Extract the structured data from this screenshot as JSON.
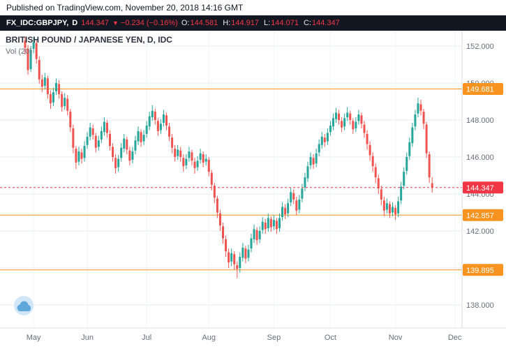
{
  "published_bar": {
    "text": "Published on TradingView.com, November 20, 2018 14:16 GMT"
  },
  "symbol_bar": {
    "symbol": "FX_IDC:GBPJPY,",
    "interval": "D",
    "last": "144.347",
    "direction": "▼",
    "change": "−0.234 (−0.16%)",
    "ohlc": [
      {
        "label": "O:",
        "value": "144.581"
      },
      {
        "label": "H:",
        "value": "144.917"
      },
      {
        "label": "L:",
        "value": "144.071"
      },
      {
        "label": "C:",
        "value": "144.347"
      }
    ]
  },
  "watermark": {
    "title": "BRITISH POUND / JAPANESE YEN, D, IDC",
    "indicator": "Vol (20)"
  },
  "colors": {
    "up": "#26a69a",
    "down": "#ef5350",
    "orange": "#f7931e",
    "red": "#f23645",
    "grid": "#e9ebf0",
    "vgrid": "#f3f4f7",
    "axis_text": "#6a6d78",
    "separator": "#dcdee3",
    "watermark_title": "#2f3241",
    "logo_bg": "#cfe6f8",
    "logo_cloud": "#5fa8dc"
  },
  "chart_data": {
    "type": "candlestick",
    "symbol": "GBPJPY",
    "interval": "D",
    "title": "BRITISH POUND / JAPANESE YEN, D, IDC",
    "ylim": [
      136.8,
      152.8
    ],
    "grid": true,
    "y_axis": {
      "ticks": [
        {
          "price": 152,
          "label": "152.000"
        },
        {
          "price": 150,
          "label": "150.000"
        },
        {
          "price": 148,
          "label": "148.000"
        },
        {
          "price": 146,
          "label": "146.000"
        },
        {
          "price": 144,
          "label": "144.000"
        },
        {
          "price": 142,
          "label": "142.000"
        },
        {
          "price": 140,
          "label": ""
        },
        {
          "price": 138,
          "label": "138.000"
        }
      ]
    },
    "levels": [
      {
        "price": 149.681,
        "label": "149.681"
      },
      {
        "price": 142.857,
        "label": "142.857"
      },
      {
        "price": 139.895,
        "label": "139.895"
      }
    ],
    "last_price": {
      "price": 144.347,
      "label": "144.347"
    },
    "months": [
      {
        "label": "May",
        "index": 3
      },
      {
        "label": "Jun",
        "index": 22
      },
      {
        "label": "Jul",
        "index": 43
      },
      {
        "label": "Aug",
        "index": 65
      },
      {
        "label": "Sep",
        "index": 88
      },
      {
        "label": "Oct",
        "index": 108
      },
      {
        "label": "Nov",
        "index": 131
      },
      {
        "label": "Dec",
        "index": 152
      }
    ],
    "candles": [
      [
        152.3,
        152.5,
        151.55,
        151.9
      ],
      [
        151.85,
        152.05,
        150.45,
        150.7
      ],
      [
        150.75,
        152.0,
        150.6,
        151.8
      ],
      [
        151.85,
        152.5,
        151.6,
        152.2
      ],
      [
        152.15,
        152.3,
        151.05,
        151.3
      ],
      [
        151.25,
        151.45,
        149.95,
        150.2
      ],
      [
        150.2,
        150.45,
        149.5,
        149.8
      ],
      [
        149.85,
        150.55,
        149.65,
        150.3
      ],
      [
        150.25,
        150.4,
        149.15,
        149.4
      ],
      [
        149.4,
        149.6,
        148.6,
        148.9
      ],
      [
        148.95,
        149.75,
        148.75,
        149.5
      ],
      [
        149.55,
        150.25,
        149.35,
        150.0
      ],
      [
        149.95,
        150.15,
        149.15,
        149.4
      ],
      [
        149.4,
        149.55,
        148.45,
        148.7
      ],
      [
        148.75,
        149.45,
        148.55,
        149.2
      ],
      [
        149.15,
        149.35,
        148.25,
        148.5
      ],
      [
        148.45,
        148.6,
        147.35,
        147.6
      ],
      [
        147.55,
        147.75,
        146.2,
        146.5
      ],
      [
        146.45,
        146.6,
        145.35,
        145.7
      ],
      [
        145.75,
        146.55,
        145.55,
        146.3
      ],
      [
        146.25,
        146.45,
        145.65,
        145.9
      ],
      [
        145.95,
        146.85,
        145.75,
        146.6
      ],
      [
        146.65,
        147.35,
        146.45,
        147.1
      ],
      [
        147.1,
        147.85,
        146.9,
        147.6
      ],
      [
        147.55,
        147.75,
        146.95,
        147.2
      ],
      [
        147.15,
        147.3,
        146.25,
        146.5
      ],
      [
        146.55,
        147.15,
        146.35,
        146.9
      ],
      [
        146.95,
        147.65,
        146.75,
        147.4
      ],
      [
        147.35,
        148.15,
        147.15,
        147.9
      ],
      [
        147.85,
        148.0,
        147.05,
        147.3
      ],
      [
        147.25,
        147.45,
        146.35,
        146.6
      ],
      [
        146.55,
        146.75,
        145.75,
        146.0
      ],
      [
        145.95,
        146.15,
        145.1,
        145.4
      ],
      [
        145.45,
        146.1,
        145.2,
        145.9
      ],
      [
        145.95,
        146.75,
        145.75,
        146.5
      ],
      [
        146.45,
        147.25,
        146.25,
        147.0
      ],
      [
        146.95,
        147.1,
        146.15,
        146.4
      ],
      [
        146.35,
        146.55,
        145.55,
        145.8
      ],
      [
        145.85,
        146.55,
        145.65,
        146.3
      ],
      [
        146.35,
        147.15,
        146.15,
        146.9
      ],
      [
        146.85,
        147.65,
        146.65,
        147.4
      ],
      [
        147.35,
        147.5,
        146.55,
        146.8
      ],
      [
        146.85,
        147.45,
        146.65,
        147.2
      ],
      [
        147.25,
        147.95,
        147.05,
        147.7
      ],
      [
        147.65,
        148.45,
        147.45,
        148.2
      ],
      [
        148.15,
        148.8,
        147.95,
        148.5
      ],
      [
        148.45,
        148.6,
        147.75,
        148.0
      ],
      [
        147.95,
        148.1,
        147.15,
        147.4
      ],
      [
        147.45,
        148.05,
        147.25,
        147.8
      ],
      [
        147.85,
        148.55,
        147.65,
        148.3
      ],
      [
        148.25,
        148.4,
        147.45,
        147.7
      ],
      [
        147.65,
        147.85,
        146.85,
        147.1
      ],
      [
        147.05,
        147.25,
        146.2,
        146.5
      ],
      [
        146.45,
        146.65,
        145.75,
        146.0
      ],
      [
        146.05,
        146.65,
        145.85,
        146.4
      ],
      [
        146.35,
        146.55,
        145.75,
        146.0
      ],
      [
        145.95,
        146.15,
        145.2,
        145.5
      ],
      [
        145.55,
        146.15,
        145.35,
        145.9
      ],
      [
        145.95,
        146.55,
        145.75,
        146.3
      ],
      [
        146.25,
        146.4,
        145.55,
        145.8
      ],
      [
        145.75,
        145.95,
        145.1,
        145.4
      ],
      [
        145.45,
        146.05,
        145.25,
        145.8
      ],
      [
        145.85,
        146.45,
        145.65,
        146.2
      ],
      [
        146.15,
        146.3,
        145.45,
        145.7
      ],
      [
        145.75,
        146.15,
        145.55,
        145.9
      ],
      [
        145.85,
        146.0,
        144.95,
        145.2
      ],
      [
        145.15,
        145.3,
        144.2,
        144.5
      ],
      [
        144.45,
        144.6,
        143.5,
        143.8
      ],
      [
        143.75,
        143.9,
        142.7,
        143.0
      ],
      [
        142.95,
        143.15,
        142.0,
        142.3
      ],
      [
        142.25,
        142.45,
        141.3,
        141.6
      ],
      [
        141.55,
        141.75,
        140.6,
        140.9
      ],
      [
        140.85,
        141.05,
        140.0,
        140.3
      ],
      [
        140.35,
        141.05,
        140.1,
        140.8
      ],
      [
        140.75,
        140.9,
        139.9,
        140.2
      ],
      [
        140.15,
        140.35,
        139.45,
        139.95
      ],
      [
        140.0,
        140.85,
        139.75,
        140.6
      ],
      [
        140.55,
        141.35,
        140.35,
        141.1
      ],
      [
        141.05,
        141.2,
        140.25,
        140.5
      ],
      [
        140.55,
        141.25,
        140.35,
        141.0
      ],
      [
        141.05,
        141.85,
        140.85,
        141.6
      ],
      [
        141.55,
        142.35,
        141.35,
        142.1
      ],
      [
        142.05,
        142.2,
        141.25,
        141.5
      ],
      [
        141.55,
        142.25,
        141.35,
        142.0
      ],
      [
        142.05,
        142.75,
        141.85,
        142.5
      ],
      [
        142.45,
        142.65,
        141.85,
        142.1
      ],
      [
        142.15,
        142.95,
        141.95,
        142.7
      ],
      [
        142.65,
        142.8,
        141.95,
        142.2
      ],
      [
        142.25,
        142.85,
        142.05,
        142.6
      ],
      [
        142.55,
        142.7,
        141.85,
        142.1
      ],
      [
        142.15,
        142.95,
        141.95,
        142.7
      ],
      [
        142.75,
        143.55,
        142.55,
        143.3
      ],
      [
        143.25,
        143.45,
        142.65,
        142.9
      ],
      [
        142.95,
        143.75,
        142.75,
        143.5
      ],
      [
        143.55,
        144.35,
        143.35,
        144.1
      ],
      [
        144.05,
        144.25,
        143.45,
        143.7
      ],
      [
        143.65,
        143.85,
        142.85,
        143.1
      ],
      [
        143.15,
        143.95,
        142.95,
        143.7
      ],
      [
        143.75,
        144.55,
        143.55,
        144.3
      ],
      [
        144.35,
        145.15,
        144.15,
        144.9
      ],
      [
        144.85,
        145.75,
        144.65,
        145.5
      ],
      [
        145.55,
        146.25,
        145.35,
        146.0
      ],
      [
        145.95,
        146.15,
        145.35,
        145.6
      ],
      [
        145.65,
        146.45,
        145.45,
        146.2
      ],
      [
        146.25,
        146.95,
        146.05,
        146.7
      ],
      [
        146.65,
        147.35,
        146.45,
        147.1
      ],
      [
        147.05,
        147.25,
        146.55,
        146.8
      ],
      [
        146.85,
        147.55,
        146.65,
        147.3
      ],
      [
        147.35,
        147.95,
        147.15,
        147.7
      ],
      [
        147.65,
        148.35,
        147.45,
        148.1
      ],
      [
        148.05,
        148.65,
        147.85,
        148.4
      ],
      [
        148.35,
        148.55,
        147.75,
        148.0
      ],
      [
        147.95,
        148.15,
        147.35,
        147.6
      ],
      [
        147.65,
        148.35,
        147.45,
        148.1
      ],
      [
        148.15,
        148.7,
        147.95,
        148.4
      ],
      [
        148.35,
        148.5,
        147.75,
        148.0
      ],
      [
        147.95,
        148.1,
        147.25,
        147.5
      ],
      [
        147.55,
        148.15,
        147.35,
        147.9
      ],
      [
        147.95,
        148.55,
        147.75,
        148.3
      ],
      [
        148.25,
        148.4,
        147.55,
        147.8
      ],
      [
        147.75,
        147.95,
        147.05,
        147.3
      ],
      [
        147.25,
        147.45,
        146.4,
        146.7
      ],
      [
        146.65,
        146.85,
        145.8,
        146.1
      ],
      [
        146.05,
        146.25,
        145.2,
        145.5
      ],
      [
        145.45,
        145.65,
        144.6,
        144.9
      ],
      [
        144.85,
        145.05,
        144.0,
        144.3
      ],
      [
        144.25,
        144.45,
        143.4,
        143.7
      ],
      [
        143.65,
        143.85,
        142.8,
        143.1
      ],
      [
        143.15,
        143.75,
        142.95,
        143.5
      ],
      [
        143.45,
        143.6,
        142.7,
        142.95
      ],
      [
        143.0,
        143.55,
        142.8,
        143.3
      ],
      [
        143.25,
        143.4,
        142.6,
        142.9
      ],
      [
        142.95,
        143.85,
        142.75,
        143.6
      ],
      [
        143.65,
        144.65,
        143.45,
        144.4
      ],
      [
        144.45,
        145.45,
        144.25,
        145.2
      ],
      [
        145.25,
        146.25,
        145.05,
        146.0
      ],
      [
        146.05,
        147.05,
        145.85,
        146.8
      ],
      [
        146.75,
        147.85,
        146.55,
        147.6
      ],
      [
        147.65,
        148.55,
        147.45,
        148.3
      ],
      [
        148.35,
        149.2,
        148.15,
        148.9
      ],
      [
        148.85,
        149.1,
        148.25,
        148.5
      ],
      [
        148.45,
        148.6,
        147.5,
        147.8
      ],
      [
        147.75,
        147.9,
        145.95,
        146.2
      ],
      [
        146.15,
        146.3,
        144.6,
        144.9
      ],
      [
        144.581,
        144.917,
        144.071,
        144.347
      ]
    ]
  }
}
